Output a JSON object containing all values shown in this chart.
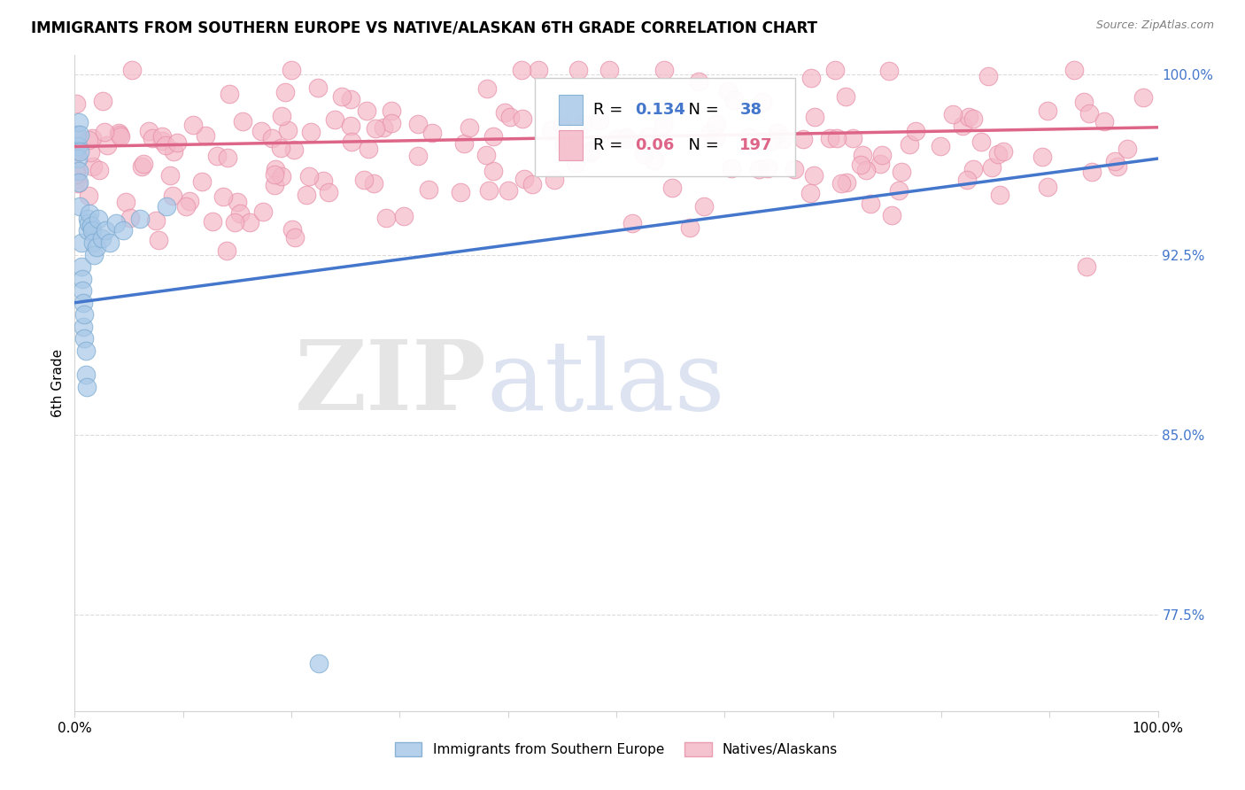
{
  "title": "IMMIGRANTS FROM SOUTHERN EUROPE VS NATIVE/ALASKAN 6TH GRADE CORRELATION CHART",
  "source": "Source: ZipAtlas.com",
  "ylabel": "6th Grade",
  "xlim": [
    0.0,
    1.0
  ],
  "ylim": [
    0.735,
    1.008
  ],
  "yticks": [
    0.775,
    0.85,
    0.925,
    1.0
  ],
  "ytick_labels": [
    "77.5%",
    "85.0%",
    "92.5%",
    "100.0%"
  ],
  "xticks": [
    0.0,
    0.1,
    0.2,
    0.3,
    0.4,
    0.5,
    0.6,
    0.7,
    0.8,
    0.9,
    1.0
  ],
  "xtick_labels_show": [
    "0.0%",
    "",
    "",
    "",
    "",
    "",
    "",
    "",
    "",
    "",
    "100.0%"
  ],
  "blue_R": 0.134,
  "blue_N": 38,
  "pink_R": 0.06,
  "pink_N": 197,
  "blue_color": "#a8c8e8",
  "pink_color": "#f4b8c8",
  "blue_edge_color": "#7aaad0",
  "pink_edge_color": "#e890a8",
  "blue_line_color": "#4477cc",
  "pink_line_color": "#dd6688",
  "legend_label_blue": "Immigrants from Southern Europe",
  "legend_label_pink": "Natives/Alaskans",
  "watermark_zip": "ZIP",
  "watermark_atlas": "atlas",
  "background_color": "#ffffff",
  "title_fontsize": 12,
  "label_fontsize": 11,
  "tick_color": "#4477cc",
  "blue_x_data": [
    0.002,
    0.003,
    0.003,
    0.004,
    0.004,
    0.004,
    0.005,
    0.005,
    0.005,
    0.006,
    0.006,
    0.007,
    0.007,
    0.008,
    0.008,
    0.009,
    0.009,
    0.01,
    0.01,
    0.011,
    0.012,
    0.012,
    0.013,
    0.014,
    0.015,
    0.016,
    0.017,
    0.018,
    0.02,
    0.022,
    0.025,
    0.028,
    0.032,
    0.038,
    0.045,
    0.06,
    0.085,
    0.225
  ],
  "blue_y_data": [
    0.975,
    0.97,
    0.965,
    0.98,
    0.96,
    0.955,
    0.975,
    0.968,
    0.945,
    0.93,
    0.92,
    0.915,
    0.91,
    0.905,
    0.895,
    0.9,
    0.89,
    0.885,
    0.875,
    0.87,
    0.94,
    0.935,
    0.938,
    0.942,
    0.937,
    0.935,
    0.93,
    0.925,
    0.928,
    0.94,
    0.932,
    0.935,
    0.93,
    0.938,
    0.935,
    0.94,
    0.945,
    0.755
  ],
  "blue_line_x": [
    0.0,
    1.0
  ],
  "blue_line_y": [
    0.905,
    0.965
  ],
  "pink_line_x": [
    0.0,
    1.0
  ],
  "pink_line_y": [
    0.97,
    0.978
  ]
}
